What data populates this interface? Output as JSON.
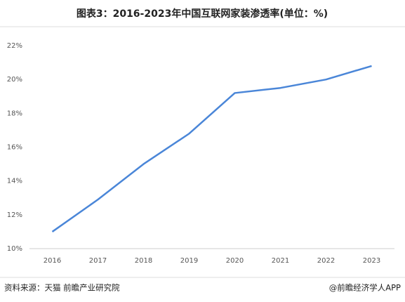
{
  "chart_data": {
    "type": "line",
    "title": "图表3：2016-2023年中国互联网家装渗透率(单位：%)",
    "categories": [
      "2016",
      "2017",
      "2018",
      "2019",
      "2020",
      "2021",
      "2022",
      "2023"
    ],
    "series": [
      {
        "color": "#4a86d8",
        "values": [
          11.0,
          12.9,
          15.0,
          16.8,
          19.2,
          19.5,
          20.0,
          20.8
        ]
      }
    ],
    "ylim": [
      10,
      22
    ],
    "yticks": [
      {
        "value": 10,
        "label": "10%"
      },
      {
        "value": 12,
        "label": "12%"
      },
      {
        "value": 14,
        "label": "14%"
      },
      {
        "value": 16,
        "label": "16%"
      },
      {
        "value": 18,
        "label": "18%"
      },
      {
        "value": 20,
        "label": "20%"
      },
      {
        "value": 22,
        "label": "22%"
      }
    ],
    "grid": false,
    "source": "资料来源：天猫 前瞻产业研究院",
    "credit": "@前瞻经济学人APP"
  }
}
